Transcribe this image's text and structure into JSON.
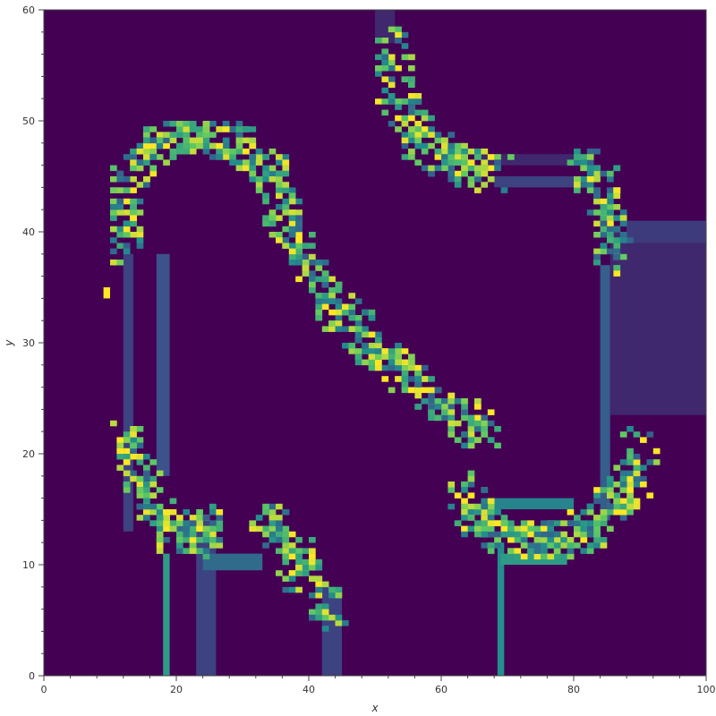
{
  "chart_data": {
    "type": "heatmap",
    "title": "",
    "xlabel": "x",
    "ylabel": "y",
    "xlim": [
      0,
      100
    ],
    "ylim": [
      0,
      60
    ],
    "x_ticks": [
      0,
      20,
      40,
      60,
      80,
      100
    ],
    "y_ticks": [
      0,
      10,
      20,
      30,
      40,
      50,
      60
    ],
    "colormap": "viridis",
    "grid": false,
    "colors": {
      "background": "#440154",
      "low": "#472c7a",
      "mid_low": "#3b528b",
      "mid": "#21908d",
      "mid_high": "#5dc963",
      "high": "#fde725"
    },
    "segments": [
      {
        "name": "top-right-tail",
        "points": [
          [
            52,
            57
          ],
          [
            53,
            52
          ],
          [
            56,
            48
          ],
          [
            62,
            46
          ],
          [
            66,
            45
          ],
          [
            68,
            45
          ]
        ]
      },
      {
        "name": "left-arch",
        "points": [
          [
            12,
            38
          ],
          [
            12,
            43
          ],
          [
            14,
            47
          ],
          [
            20,
            48.5
          ],
          [
            28,
            48
          ],
          [
            34,
            45
          ],
          [
            36,
            40
          ]
        ]
      },
      {
        "name": "diagonal",
        "points": [
          [
            36,
            40
          ],
          [
            42,
            34
          ],
          [
            48,
            30
          ],
          [
            54,
            27
          ],
          [
            58,
            25
          ],
          [
            63,
            23
          ],
          [
            66,
            21
          ]
        ]
      },
      {
        "name": "right-hook",
        "points": [
          [
            80,
            46
          ],
          [
            84,
            44
          ],
          [
            86,
            40
          ],
          [
            84,
            37
          ]
        ]
      },
      {
        "name": "bottom-right-turn",
        "points": [
          [
            63,
            17
          ],
          [
            66,
            13
          ],
          [
            70,
            12
          ],
          [
            78,
            12
          ],
          [
            84,
            14
          ],
          [
            88,
            17
          ],
          [
            90,
            21
          ]
        ]
      },
      {
        "name": "bottom-left-loop",
        "points": [
          [
            12,
            21
          ],
          [
            14,
            17
          ],
          [
            18,
            13
          ],
          [
            22,
            12
          ],
          [
            26,
            14
          ]
        ]
      },
      {
        "name": "bottom-stem",
        "points": [
          [
            33,
            14
          ],
          [
            36,
            12
          ],
          [
            40,
            8
          ],
          [
            43,
            5
          ]
        ]
      }
    ],
    "faint_bands": [
      {
        "x": [
          12,
          13.5
        ],
        "y": [
          13,
          38
        ],
        "level": 0.2
      },
      {
        "x": [
          17,
          19
        ],
        "y": [
          18,
          38
        ],
        "level": 0.25
      },
      {
        "x": [
          23,
          26
        ],
        "y": [
          0,
          14
        ],
        "level": 0.2
      },
      {
        "x": [
          18,
          19
        ],
        "y": [
          0,
          11
        ],
        "level": 0.55
      },
      {
        "x": [
          42,
          45
        ],
        "y": [
          0,
          8
        ],
        "level": 0.2
      },
      {
        "x": [
          68.5,
          69.5
        ],
        "y": [
          0,
          12
        ],
        "level": 0.5
      },
      {
        "x": [
          84,
          85.5
        ],
        "y": [
          14,
          37
        ],
        "level": 0.3
      },
      {
        "x": [
          85.5,
          100
        ],
        "y": [
          23.5,
          40
        ],
        "level": 0.12
      },
      {
        "x": [
          88,
          100
        ],
        "y": [
          39,
          41
        ],
        "level": 0.18
      },
      {
        "x": [
          66,
          80
        ],
        "y": [
          46,
          47
        ],
        "level": 0.12
      },
      {
        "x": [
          68,
          80
        ],
        "y": [
          44,
          45
        ],
        "level": 0.2
      },
      {
        "x": [
          66,
          80
        ],
        "y": [
          15,
          16
        ],
        "level": 0.45
      },
      {
        "x": [
          69,
          79
        ],
        "y": [
          10,
          11
        ],
        "level": 0.55
      },
      {
        "x": [
          24,
          33
        ],
        "y": [
          9.5,
          11
        ],
        "level": 0.35
      },
      {
        "x": [
          50,
          53
        ],
        "y": [
          57,
          60
        ],
        "level": 0.12
      }
    ],
    "isolated_points": [
      {
        "x": 9.5,
        "y": 34.5,
        "value": 1.0
      }
    ]
  }
}
